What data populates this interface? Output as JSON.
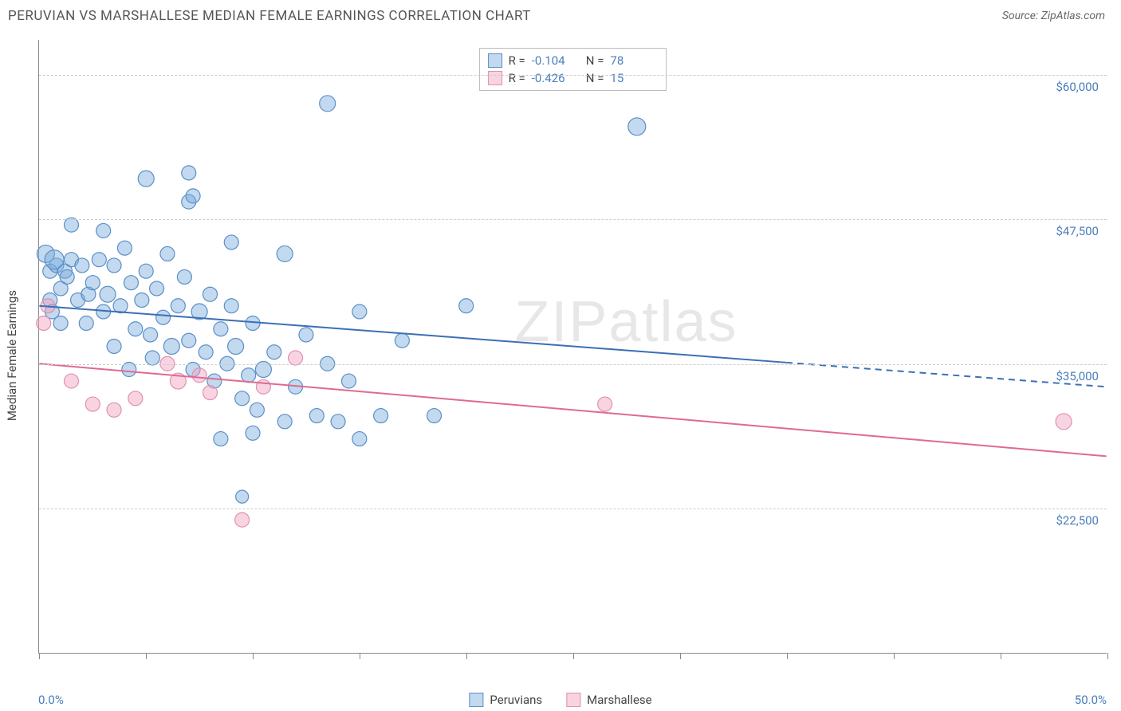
{
  "title": "PERUVIAN VS MARSHALLESE MEDIAN FEMALE EARNINGS CORRELATION CHART",
  "source": "Source: ZipAtlas.com",
  "watermark": "ZIPatlas",
  "y_axis_label": "Median Female Earnings",
  "chart": {
    "type": "scatter",
    "x_min": 0.0,
    "x_max": 50.0,
    "x_min_label": "0.0%",
    "x_max_label": "50.0%",
    "y_min": 10000,
    "y_max": 63000,
    "y_ticks": [
      22500,
      35000,
      47500,
      60000
    ],
    "y_tick_labels": [
      "$22,500",
      "$35,000",
      "$47,500",
      "$60,000"
    ],
    "x_tick_positions": [
      0,
      5,
      10,
      15,
      20,
      25,
      30,
      35,
      40,
      45,
      50
    ],
    "grid_color": "#cccccc",
    "axis_color": "#888888",
    "background_color": "#ffffff",
    "tick_label_color": "#4a7ebb"
  },
  "series": [
    {
      "id": "peruvians",
      "label": "Peruvians",
      "fill": "rgba(120,170,220,0.45)",
      "stroke": "#5b8fc7",
      "line_color": "#3b6fb5",
      "line_width": 2,
      "marker_radius": 9,
      "regression": {
        "x1": 0,
        "y1": 40000,
        "x2": 50,
        "y2": 33000,
        "solid_until_x": 35
      },
      "stats": {
        "R_label": "R =",
        "R": "-0.104",
        "N_label": "N =",
        "N": "78"
      },
      "points": [
        [
          0.3,
          44500,
          11
        ],
        [
          0.5,
          43000,
          9
        ],
        [
          0.8,
          43500,
          9
        ],
        [
          0.5,
          40500,
          9
        ],
        [
          0.7,
          44000,
          12
        ],
        [
          1.0,
          41500,
          9
        ],
        [
          1.2,
          43000,
          9
        ],
        [
          0.6,
          39500,
          9
        ],
        [
          1.5,
          44000,
          9
        ],
        [
          1.8,
          40500,
          9
        ],
        [
          1.3,
          42500,
          9
        ],
        [
          1.0,
          38500,
          9
        ],
        [
          2.0,
          43500,
          9
        ],
        [
          2.3,
          41000,
          9
        ],
        [
          2.2,
          38500,
          9
        ],
        [
          2.5,
          42000,
          9
        ],
        [
          2.8,
          44000,
          9
        ],
        [
          3.0,
          39500,
          9
        ],
        [
          3.2,
          41000,
          10
        ],
        [
          3.5,
          43500,
          9
        ],
        [
          3.8,
          40000,
          9
        ],
        [
          3.5,
          36500,
          9
        ],
        [
          4.0,
          45000,
          9
        ],
        [
          4.3,
          42000,
          9
        ],
        [
          4.5,
          38000,
          9
        ],
        [
          4.2,
          34500,
          9
        ],
        [
          4.8,
          40500,
          9
        ],
        [
          5.0,
          43000,
          9
        ],
        [
          5.2,
          37500,
          9
        ],
        [
          5.5,
          41500,
          9
        ],
        [
          5.3,
          35500,
          9
        ],
        [
          5.8,
          39000,
          9
        ],
        [
          6.0,
          44500,
          9
        ],
        [
          6.2,
          36500,
          10
        ],
        [
          6.5,
          40000,
          9
        ],
        [
          5.0,
          51000,
          10
        ],
        [
          6.8,
          42500,
          9
        ],
        [
          7.0,
          37000,
          9
        ],
        [
          7.0,
          49000,
          9
        ],
        [
          7.2,
          34500,
          9
        ],
        [
          7.5,
          39500,
          10
        ],
        [
          7.0,
          51500,
          9
        ],
        [
          7.8,
          36000,
          9
        ],
        [
          8.0,
          41000,
          9
        ],
        [
          8.2,
          33500,
          9
        ],
        [
          8.5,
          38000,
          9
        ],
        [
          7.2,
          49500,
          9
        ],
        [
          8.8,
          35000,
          9
        ],
        [
          9.0,
          40000,
          9
        ],
        [
          8.5,
          28500,
          9
        ],
        [
          9.2,
          36500,
          10
        ],
        [
          9.5,
          32000,
          9
        ],
        [
          9.0,
          45500,
          9
        ],
        [
          9.8,
          34000,
          9
        ],
        [
          9.5,
          23500,
          8
        ],
        [
          10.0,
          38500,
          9
        ],
        [
          10.0,
          29000,
          9
        ],
        [
          10.5,
          34500,
          10
        ],
        [
          10.2,
          31000,
          9
        ],
        [
          11.0,
          36000,
          9
        ],
        [
          11.5,
          30000,
          9
        ],
        [
          11.5,
          44500,
          10
        ],
        [
          12.0,
          33000,
          9
        ],
        [
          12.5,
          37500,
          9
        ],
        [
          13.0,
          30500,
          9
        ],
        [
          13.5,
          35000,
          9
        ],
        [
          13.5,
          57500,
          10
        ],
        [
          14.0,
          30000,
          9
        ],
        [
          14.5,
          33500,
          9
        ],
        [
          15.0,
          39500,
          9
        ],
        [
          15.0,
          28500,
          9
        ],
        [
          16.0,
          30500,
          9
        ],
        [
          17.0,
          37000,
          9
        ],
        [
          18.5,
          30500,
          9
        ],
        [
          20.0,
          40000,
          9
        ],
        [
          28.0,
          55500,
          11
        ],
        [
          1.5,
          47000,
          9
        ],
        [
          3.0,
          46500,
          9
        ]
      ]
    },
    {
      "id": "marshallese",
      "label": "Marshallese",
      "fill": "rgba(240,160,190,0.45)",
      "stroke": "#e091ad",
      "line_color": "#e06a8f",
      "line_width": 2,
      "marker_radius": 9,
      "regression": {
        "x1": 0,
        "y1": 35000,
        "x2": 50,
        "y2": 27000,
        "solid_until_x": 50
      },
      "stats": {
        "R_label": "R =",
        "R": "-0.426",
        "N_label": "N =",
        "N": "15"
      },
      "points": [
        [
          0.4,
          40000,
          9
        ],
        [
          0.2,
          38500,
          9
        ],
        [
          1.5,
          33500,
          9
        ],
        [
          2.5,
          31500,
          9
        ],
        [
          3.5,
          31000,
          9
        ],
        [
          6.0,
          35000,
          9
        ],
        [
          6.5,
          33500,
          10
        ],
        [
          7.5,
          34000,
          9
        ],
        [
          8.0,
          32500,
          9
        ],
        [
          9.5,
          21500,
          9
        ],
        [
          10.5,
          33000,
          9
        ],
        [
          12.0,
          35500,
          9
        ],
        [
          26.5,
          31500,
          9
        ],
        [
          48.0,
          30000,
          10
        ],
        [
          4.5,
          32000,
          9
        ]
      ]
    }
  ],
  "bottom_legend": [
    {
      "label": "Peruvians",
      "fill": "rgba(120,170,220,0.45)",
      "stroke": "#5b8fc7"
    },
    {
      "label": "Marshallese",
      "fill": "rgba(240,160,190,0.45)",
      "stroke": "#e091ad"
    }
  ]
}
